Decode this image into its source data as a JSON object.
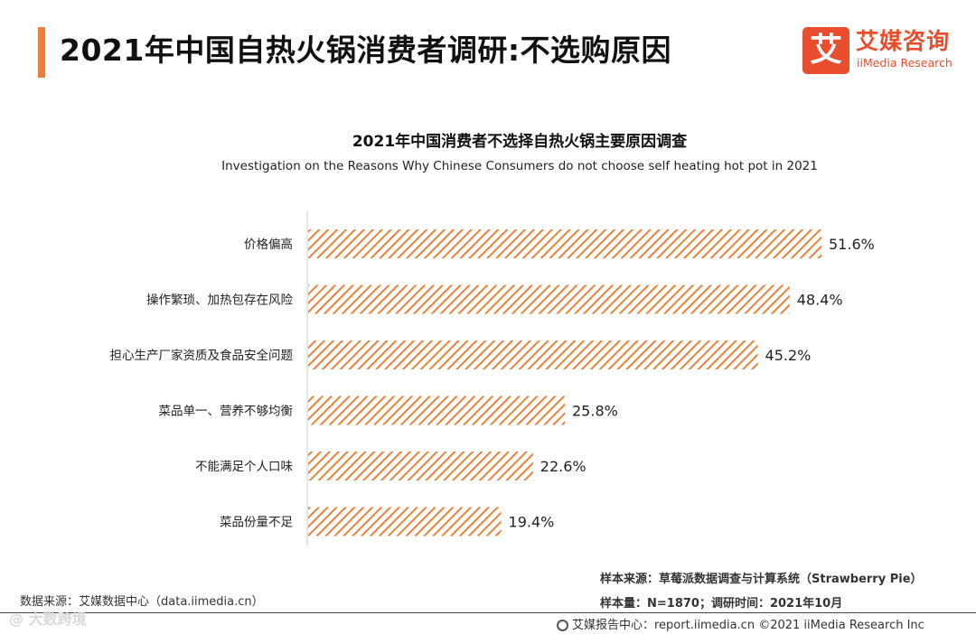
{
  "page_title": "2021年中国自热火锅消费者调研:不选购原因",
  "logo": {
    "icon_text": "艾",
    "name_cn": "艾媒咨询",
    "name_en": "iiMedia Research"
  },
  "colors": {
    "accent": "#f27c3a",
    "bar": "#e8823a",
    "logo": "#e84e2e"
  },
  "chart_data": {
    "type": "bar",
    "orientation": "horizontal",
    "title": "2021年中国消费者不选择自热火锅主要原因调查",
    "subtitle": "Investigation on the Reasons Why Chinese Consumers do not choose self heating hot pot in 2021",
    "categories": [
      "价格偏高",
      "操作繁琐、加热包存在风险",
      "担心生产厂家资质及食品安全问题",
      "菜品单一、营养不够均衡",
      "不能满足个人口味",
      "菜品份量不足"
    ],
    "values": [
      51.6,
      48.4,
      45.2,
      25.8,
      22.6,
      19.4
    ],
    "value_labels": [
      "51.6%",
      "48.4%",
      "45.2%",
      "25.8%",
      "22.6%",
      "19.4%"
    ],
    "unit": "%",
    "xlim": [
      0,
      51.6
    ],
    "fill": "diagonal-hatch"
  },
  "footer": {
    "data_source": "数据来源：艾媒数据中心（data.iimedia.cn）",
    "sample_source": "样本来源：草莓派数据调查与计算系统（Strawberry Pie）",
    "sample_size": "样本量：N=1870；调研时间：2021年10月",
    "copyright": "艾媒报告中心：report.iimedia.cn  ©2021  iiMedia Research  Inc",
    "watermark": "@ 大数跨境"
  }
}
